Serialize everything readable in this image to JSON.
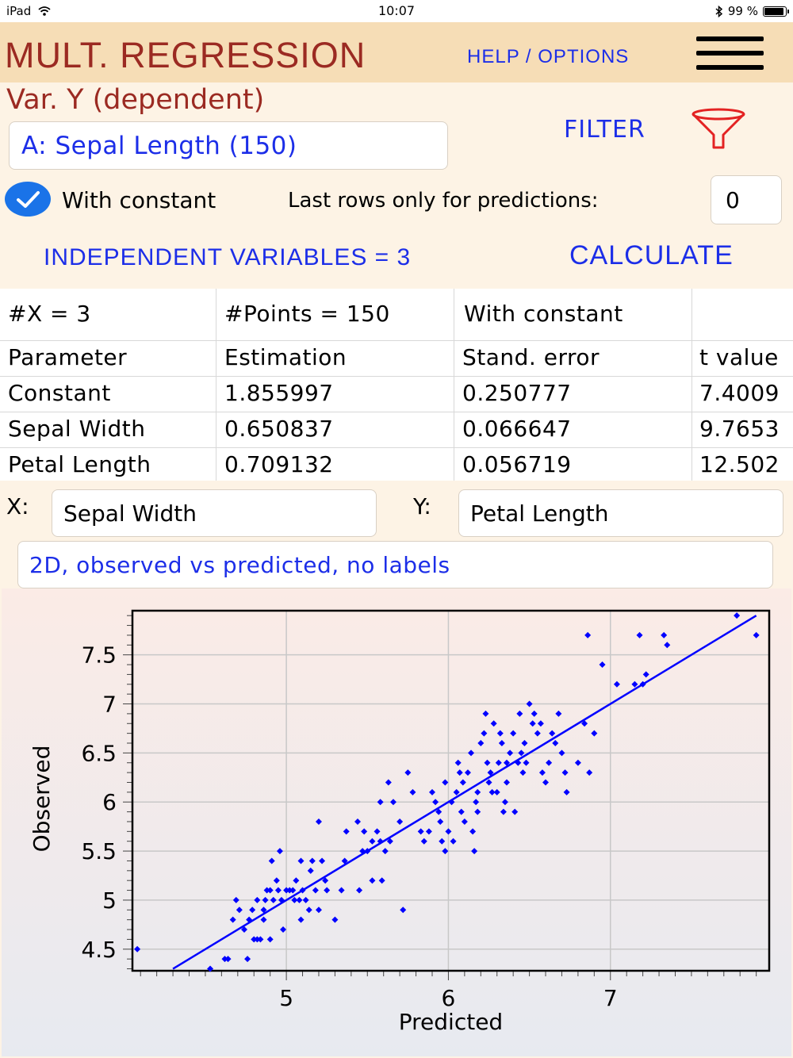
{
  "status_bar": {
    "device": "iPad",
    "time": "10:07",
    "battery": "99 %"
  },
  "header": {
    "title": "MULT. REGRESSION",
    "help_label": "HELP / OPTIONS"
  },
  "controls": {
    "y_label": "Var. Y (dependent)",
    "y_value": "A: Sepal Length (150)",
    "filter_label": "FILTER",
    "with_constant_label": "With constant",
    "with_constant_checked": true,
    "last_rows_label": "Last rows only for predictions:",
    "last_rows_value": "0",
    "independent_button": "INDEPENDENT VARIABLES = 3",
    "calculate_button": "CALCULATE"
  },
  "results": {
    "summary": [
      "#X = 3",
      "#Points = 150",
      "With constant"
    ],
    "headers": [
      "Parameter",
      "Estimation",
      "Stand. error",
      "t value"
    ],
    "rows": [
      [
        "Constant",
        "1.855997",
        "0.250777",
        "7.4009"
      ],
      [
        "Sepal Width",
        "0.650837",
        "0.066647",
        "9.7653"
      ],
      [
        "Petal Length",
        "0.709132",
        "0.056719",
        "12.502"
      ]
    ]
  },
  "axis_select": {
    "x_label": "X:",
    "x_value": "Sepal Width",
    "y_label": "Y:",
    "y_value": "Petal Length"
  },
  "plot_mode": "2D, observed vs predicted, no labels",
  "chart_data": {
    "type": "scatter",
    "xlabel": "Predicted",
    "ylabel": "Observed",
    "xlim": [
      4.05,
      7.98
    ],
    "ylim": [
      4.28,
      7.95
    ],
    "xticks": [
      5,
      6,
      7
    ],
    "yticks": [
      4.5,
      5,
      5.5,
      6,
      6.5,
      7,
      7.5
    ],
    "grid": true,
    "point_color": "#0000ff",
    "line_color": "#0000ff",
    "fit_line": [
      [
        4.3,
        4.3
      ],
      [
        7.9,
        7.9
      ]
    ],
    "points": [
      [
        4.08,
        4.5
      ],
      [
        4.53,
        4.3
      ],
      [
        4.62,
        4.4
      ],
      [
        4.64,
        4.4
      ],
      [
        4.67,
        4.8
      ],
      [
        4.69,
        5.0
      ],
      [
        4.71,
        4.9
      ],
      [
        4.74,
        4.7
      ],
      [
        4.77,
        4.8
      ],
      [
        4.76,
        4.4
      ],
      [
        4.79,
        4.9
      ],
      [
        4.8,
        4.6
      ],
      [
        4.82,
        4.6
      ],
      [
        4.84,
        4.6
      ],
      [
        4.82,
        5.0
      ],
      [
        4.86,
        4.8
      ],
      [
        4.87,
        5.0
      ],
      [
        4.88,
        5.1
      ],
      [
        4.9,
        4.6
      ],
      [
        4.91,
        5.4
      ],
      [
        4.92,
        5.0
      ],
      [
        4.94,
        5.2
      ],
      [
        4.95,
        5.1
      ],
      [
        4.96,
        5.5
      ],
      [
        4.97,
        5.0
      ],
      [
        4.98,
        4.7
      ],
      [
        5.0,
        5.1
      ],
      [
        5.02,
        5.1
      ],
      [
        5.04,
        5.1
      ],
      [
        5.05,
        5.0
      ],
      [
        5.08,
        5.0
      ],
      [
        5.09,
        5.4
      ],
      [
        5.09,
        4.8
      ],
      [
        5.1,
        5.1
      ],
      [
        5.12,
        5.0
      ],
      [
        5.14,
        4.9
      ],
      [
        5.16,
        5.4
      ],
      [
        5.18,
        5.1
      ],
      [
        5.2,
        5.8
      ],
      [
        5.2,
        4.9
      ],
      [
        5.22,
        5.4
      ],
      [
        5.24,
        5.2
      ],
      [
        5.25,
        5.1
      ],
      [
        5.3,
        4.8
      ],
      [
        5.34,
        5.1
      ],
      [
        5.36,
        5.4
      ],
      [
        5.37,
        5.7
      ],
      [
        5.45,
        5.1
      ],
      [
        5.47,
        5.5
      ],
      [
        5.48,
        5.7
      ],
      [
        5.5,
        5.5
      ],
      [
        5.53,
        5.2
      ],
      [
        5.56,
        5.7
      ],
      [
        5.58,
        5.6
      ],
      [
        5.59,
        5.2
      ],
      [
        5.61,
        5.5
      ],
      [
        5.64,
        5.6
      ],
      [
        5.63,
        6.2
      ],
      [
        5.58,
        6.0
      ],
      [
        5.72,
        4.9
      ],
      [
        5.7,
        5.8
      ],
      [
        5.75,
        6.3
      ],
      [
        5.78,
        6.1
      ],
      [
        5.83,
        5.7
      ],
      [
        5.85,
        5.6
      ],
      [
        5.88,
        5.7
      ],
      [
        5.92,
        6.0
      ],
      [
        5.94,
        5.9
      ],
      [
        5.95,
        5.8
      ],
      [
        5.96,
        5.6
      ],
      [
        5.98,
        5.5
      ],
      [
        5.98,
        6.2
      ],
      [
        6.0,
        5.7
      ],
      [
        6.03,
        5.6
      ],
      [
        6.05,
        6.1
      ],
      [
        6.06,
        6.4
      ],
      [
        6.07,
        6.3
      ],
      [
        6.09,
        6.2
      ],
      [
        6.1,
        5.8
      ],
      [
        6.12,
        6.3
      ],
      [
        6.14,
        6.5
      ],
      [
        6.15,
        5.7
      ],
      [
        6.16,
        5.5
      ],
      [
        6.17,
        6.0
      ],
      [
        6.18,
        5.9
      ],
      [
        6.2,
        6.6
      ],
      [
        6.22,
        6.7
      ],
      [
        6.23,
        6.9
      ],
      [
        6.25,
        6.2
      ],
      [
        6.26,
        6.3
      ],
      [
        6.27,
        6.1
      ],
      [
        6.28,
        6.8
      ],
      [
        6.3,
        6.1
      ],
      [
        6.31,
        6.4
      ],
      [
        6.32,
        6.7
      ],
      [
        6.33,
        6.6
      ],
      [
        6.34,
        5.9
      ],
      [
        6.35,
        6.0
      ],
      [
        6.36,
        6.4
      ],
      [
        6.38,
        6.5
      ],
      [
        6.4,
        6.7
      ],
      [
        6.41,
        5.9
      ],
      [
        6.43,
        6.4
      ],
      [
        6.44,
        6.9
      ],
      [
        6.45,
        6.5
      ],
      [
        6.46,
        6.3
      ],
      [
        6.47,
        6.6
      ],
      [
        6.5,
        7.0
      ],
      [
        6.52,
        6.8
      ],
      [
        6.53,
        6.9
      ],
      [
        6.55,
        6.7
      ],
      [
        6.57,
        6.8
      ],
      [
        6.6,
        6.2
      ],
      [
        6.62,
        6.4
      ],
      [
        6.64,
        6.7
      ],
      [
        6.68,
        6.9
      ],
      [
        6.7,
        6.5
      ],
      [
        6.72,
        6.3
      ],
      [
        6.73,
        6.1
      ],
      [
        6.8,
        6.4
      ],
      [
        6.84,
        6.8
      ],
      [
        6.86,
        7.7
      ],
      [
        6.87,
        6.3
      ],
      [
        6.9,
        6.7
      ],
      [
        6.95,
        7.4
      ],
      [
        7.04,
        7.2
      ],
      [
        7.15,
        7.2
      ],
      [
        7.18,
        7.7
      ],
      [
        7.2,
        7.2
      ],
      [
        7.22,
        7.3
      ],
      [
        7.33,
        7.7
      ],
      [
        7.35,
        7.6
      ],
      [
        7.78,
        7.9
      ],
      [
        7.9,
        7.7
      ],
      [
        4.9,
        5.1
      ],
      [
        5.06,
        5.2
      ],
      [
        5.44,
        5.8
      ],
      [
        5.66,
        6.0
      ],
      [
        6.08,
        5.9
      ],
      [
        6.18,
        6.1
      ],
      [
        6.24,
        6.4
      ],
      [
        6.48,
        6.4
      ],
      [
        6.58,
        6.3
      ],
      [
        6.36,
        6.2
      ],
      [
        5.9,
        6.1
      ],
      [
        6.02,
        6.0
      ],
      [
        5.53,
        5.6
      ],
      [
        5.15,
        5.3
      ],
      [
        4.86,
        4.9
      ],
      [
        6.66,
        6.6
      ]
    ]
  }
}
